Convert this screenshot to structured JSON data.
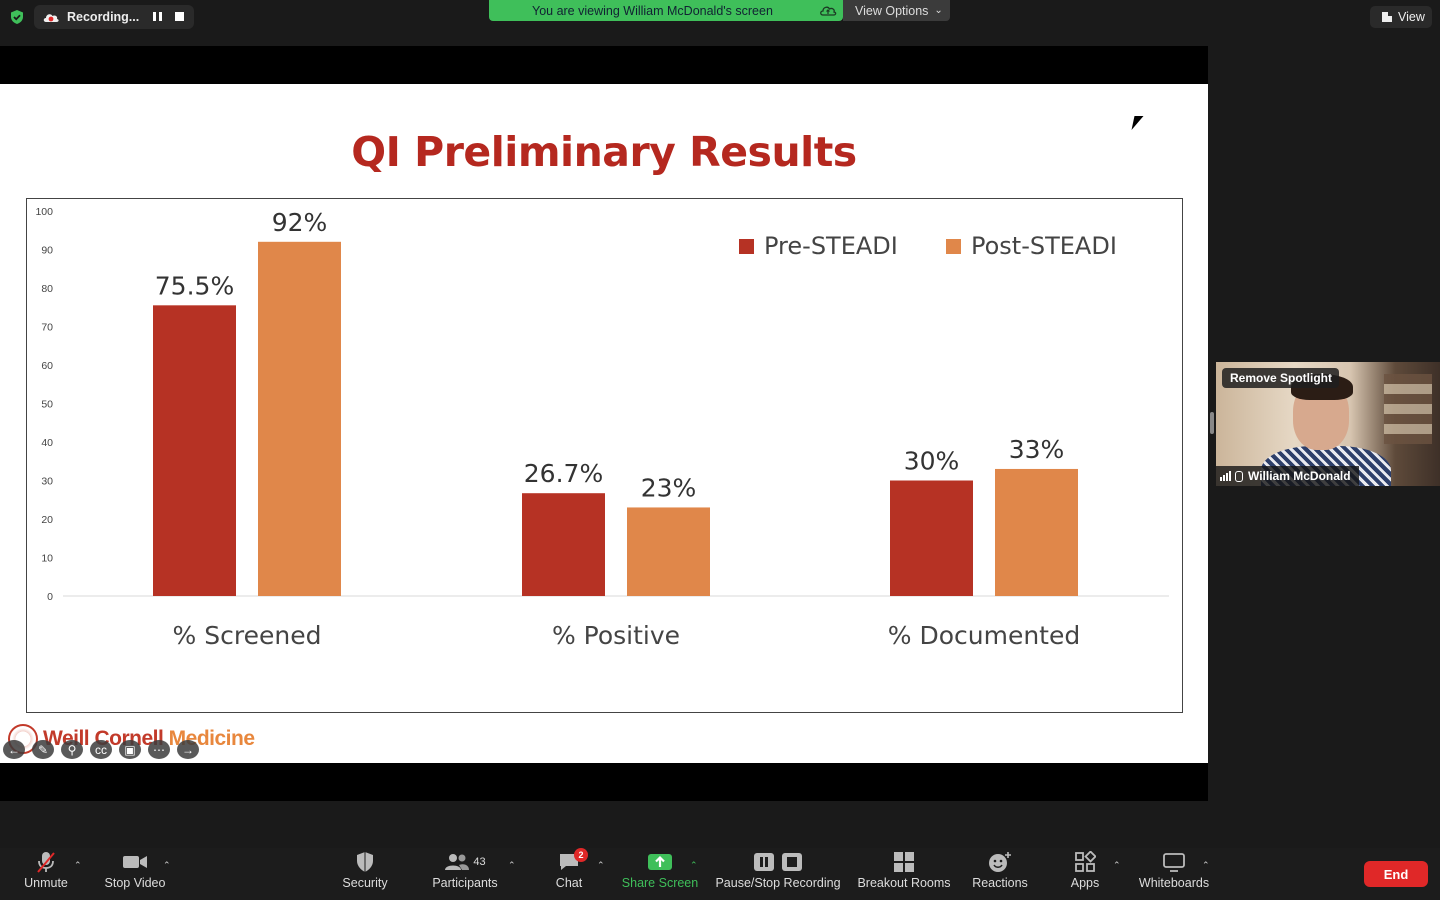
{
  "topbar": {
    "recording_label": "Recording...",
    "viewing_banner": "You are viewing William McDonald's screen",
    "view_options_label": "View Options",
    "view_label": "View"
  },
  "slide": {
    "title": "QI Preliminary Results",
    "logo_text_a": "Weill Cornell ",
    "logo_text_b": "Medicine"
  },
  "chart_data": {
    "type": "bar",
    "title": "QI Preliminary Results",
    "categories": [
      "% Screened",
      "% Positive",
      "% Documented"
    ],
    "series": [
      {
        "name": "Pre-STEADI",
        "values": [
          75.5,
          26.7,
          30
        ],
        "labels": [
          "75.5%",
          "26.7%",
          "30%"
        ],
        "color": "#b63224"
      },
      {
        "name": "Post-STEADI",
        "values": [
          92,
          23,
          33
        ],
        "labels": [
          "92%",
          "23%",
          "33%"
        ],
        "color": "#e0874a"
      }
    ],
    "ylim": [
      0,
      100
    ],
    "yticks": [
      "0",
      "10",
      "20",
      "30",
      "40",
      "50",
      "60",
      "70",
      "80",
      "90",
      "100"
    ],
    "legend": "top-right",
    "grid": false
  },
  "video": {
    "spotlight_label": "Remove Spotlight",
    "participant_name": "William McDonald"
  },
  "toolbar": {
    "unmute": "Unmute",
    "stop_video": "Stop Video",
    "security": "Security",
    "participants": "Participants",
    "participants_count": "43",
    "chat": "Chat",
    "chat_badge": "2",
    "share_screen": "Share Screen",
    "pause_stop": "Pause/Stop Recording",
    "breakout": "Breakout Rooms",
    "reactions": "Reactions",
    "apps": "Apps",
    "whiteboards": "Whiteboards",
    "end": "End"
  }
}
